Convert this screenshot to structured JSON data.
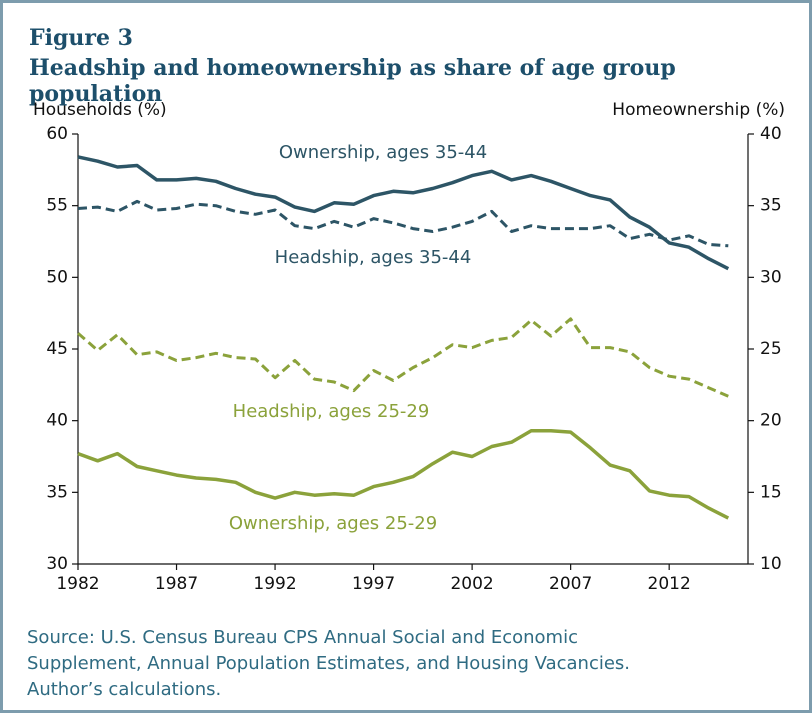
{
  "chart_data": {
    "type": "line",
    "figure_label": "Figure 3",
    "title": "Headship and homeownership as share of age group population",
    "ylabel": "Households (%)",
    "y2label": "Homeownership (%)",
    "x": [
      1982,
      1983,
      1984,
      1985,
      1986,
      1987,
      1988,
      1989,
      1990,
      1991,
      1992,
      1993,
      1994,
      1995,
      1996,
      1997,
      1998,
      1999,
      2000,
      2001,
      2002,
      2003,
      2004,
      2005,
      2006,
      2007,
      2008,
      2009,
      2010,
      2011,
      2012,
      2013,
      2014,
      2015
    ],
    "xlim": [
      1982,
      2016
    ],
    "xticks": [
      1982,
      1987,
      1992,
      1997,
      2002,
      2007,
      2012
    ],
    "ylim": [
      30,
      60
    ],
    "yticks": [
      30,
      35,
      40,
      45,
      50,
      55,
      60
    ],
    "y2lim": [
      10,
      40
    ],
    "y2ticks": [
      10,
      15,
      20,
      25,
      30,
      35,
      40
    ],
    "series": [
      {
        "name": "Ownership, ages 35-44",
        "color": "#2d5566",
        "axis": "y2",
        "style": "solid",
        "values": [
          38.4,
          38.1,
          37.7,
          37.8,
          36.8,
          36.8,
          36.9,
          36.7,
          36.2,
          35.8,
          35.6,
          34.9,
          34.6,
          35.2,
          35.1,
          35.7,
          36.0,
          35.9,
          36.2,
          36.6,
          37.1,
          37.4,
          36.8,
          37.1,
          36.7,
          36.2,
          35.7,
          35.4,
          34.2,
          33.5,
          32.4,
          32.1,
          31.3,
          30.6
        ]
      },
      {
        "name": "Headship, ages 35-44",
        "color": "#2d5566",
        "axis": "y",
        "style": "dashed",
        "values": [
          54.8,
          54.9,
          54.6,
          55.3,
          54.7,
          54.8,
          55.1,
          55.0,
          54.6,
          54.4,
          54.7,
          53.6,
          53.4,
          53.9,
          53.5,
          54.1,
          53.8,
          53.4,
          53.2,
          53.5,
          53.9,
          54.6,
          53.2,
          53.6,
          53.4,
          53.4,
          53.4,
          53.6,
          52.7,
          53.0,
          52.6,
          52.9,
          52.3,
          52.2
        ]
      },
      {
        "name": "Headship, ages 25-29",
        "color": "#8ba23b",
        "axis": "y",
        "style": "dashed",
        "values": [
          46.1,
          44.9,
          46.0,
          44.6,
          44.8,
          44.2,
          44.4,
          44.7,
          44.4,
          44.3,
          43.0,
          44.2,
          42.9,
          42.7,
          42.1,
          43.5,
          42.8,
          43.7,
          44.4,
          45.3,
          45.1,
          45.6,
          45.8,
          47.0,
          45.9,
          47.1,
          45.1,
          45.1,
          44.8,
          43.7,
          43.1,
          42.9,
          42.3,
          41.7
        ]
      },
      {
        "name": "Ownership, ages 25-29",
        "color": "#8ba23b",
        "axis": "y2",
        "style": "solid",
        "values": [
          17.7,
          17.2,
          17.7,
          16.8,
          16.5,
          16.2,
          16.0,
          15.9,
          15.7,
          15.0,
          14.6,
          15.0,
          14.8,
          14.9,
          14.8,
          15.4,
          15.7,
          16.1,
          17.0,
          17.8,
          17.5,
          18.2,
          18.5,
          19.3,
          19.3,
          19.2,
          18.1,
          16.9,
          16.5,
          15.1,
          14.8,
          14.7,
          13.9,
          13.2
        ]
      }
    ],
    "source": [
      "Source: U.S. Census Bureau CPS Annual Social and Economic",
      "Supplement, Annual Population Estimates, and Housing Vacancies.",
      "Author’s calculations."
    ]
  }
}
